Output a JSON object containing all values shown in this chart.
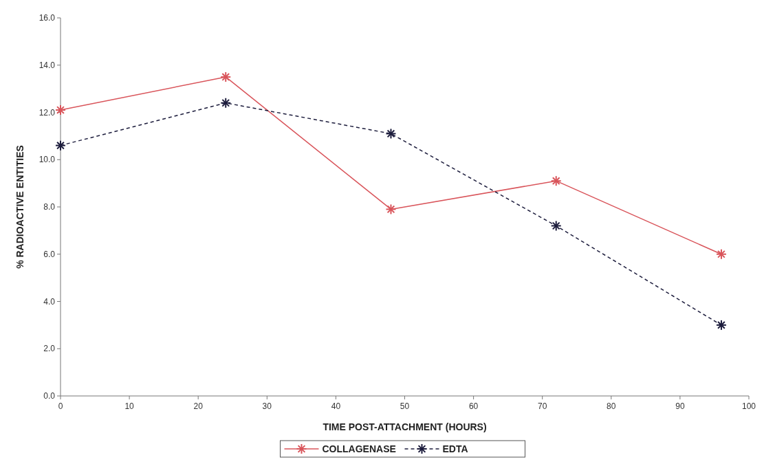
{
  "chart_data": {
    "type": "line",
    "xlabel": "TIME POST-ATTACHMENT (HOURS)",
    "ylabel": "% RADIOACTIVE ENTITIES",
    "x": [
      0,
      24,
      48,
      72,
      96
    ],
    "series": [
      {
        "name": "COLLAGENASE",
        "color": "#d9545a",
        "values": [
          12.1,
          13.5,
          7.9,
          9.1,
          6.0
        ],
        "line_style": "solid"
      },
      {
        "name": "EDTA",
        "color": "#1c1c3c",
        "values": [
          10.6,
          12.4,
          11.1,
          7.2,
          3.0
        ],
        "line_style": "dashed"
      }
    ],
    "xlim": [
      0,
      100
    ],
    "xticks": [
      0,
      10,
      20,
      30,
      40,
      50,
      60,
      70,
      80,
      90,
      100
    ],
    "ylim": [
      0,
      16
    ],
    "yticks": [
      {
        "value": 0,
        "label": "0.0"
      },
      {
        "value": 2,
        "label": "2.0"
      },
      {
        "value": 4,
        "label": "4.0"
      },
      {
        "value": 6,
        "label": "6.0"
      },
      {
        "value": 8,
        "label": "8.0"
      },
      {
        "value": 10,
        "label": "10.0"
      },
      {
        "value": 12,
        "label": "12.0"
      },
      {
        "value": 14,
        "label": "14.0"
      },
      {
        "value": 16,
        "label": "16.0"
      }
    ],
    "marker": "cross",
    "grid": false,
    "legend": "bottom"
  }
}
